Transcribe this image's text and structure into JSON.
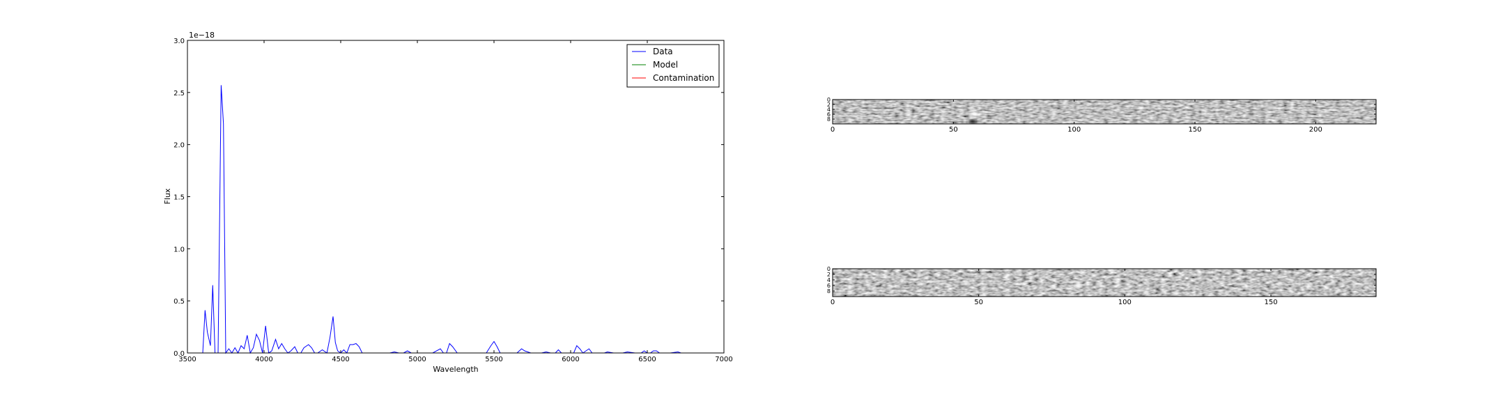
{
  "chart_data": [
    {
      "type": "line",
      "title": "",
      "xlabel": "Wavelength",
      "ylabel": "Flux",
      "offset_label": "1e−18",
      "xlim": [
        3500,
        7000
      ],
      "ylim": [
        0,
        3.0
      ],
      "xticks": [
        3500,
        4000,
        4500,
        5000,
        5500,
        6000,
        6500,
        7000
      ],
      "xtick_labels": [
        "3500",
        "4000",
        "4500",
        "5000",
        "5500",
        "6000",
        "6500",
        "7000"
      ],
      "yticks": [
        0,
        0.5,
        1.0,
        1.5,
        2.0,
        2.5,
        3.0
      ],
      "ytick_labels": [
        "0.0",
        "0.5",
        "1.0",
        "1.5",
        "2.0",
        "2.5",
        "3.0"
      ],
      "grid": false,
      "legend_position": "top-right",
      "series": [
        {
          "name": "Data",
          "color": "#0000ff",
          "x": [
            3580,
            3600,
            3615,
            3630,
            3650,
            3665,
            3680,
            3700,
            3720,
            3735,
            3750,
            3770,
            3790,
            3810,
            3830,
            3850,
            3870,
            3890,
            3910,
            3930,
            3950,
            3970,
            3990,
            4010,
            4030,
            4050,
            4075,
            4095,
            4115,
            4135,
            4155,
            4175,
            4200,
            4220,
            4240,
            4260,
            4290,
            4310,
            4330,
            4350,
            4380,
            4410,
            4430,
            4450,
            4465,
            4480,
            4500,
            4520,
            4540,
            4560,
            4580,
            4600,
            4620,
            4640,
            4660,
            4700,
            4800,
            4820,
            4850,
            4880,
            4910,
            4935,
            4960,
            5000,
            5050,
            5100,
            5150,
            5170,
            5190,
            5210,
            5230,
            5260,
            5300,
            5350,
            5400,
            5450,
            5480,
            5500,
            5520,
            5540,
            5580,
            5620,
            5650,
            5680,
            5700,
            5740,
            5780,
            5810,
            5840,
            5870,
            5900,
            5920,
            5940,
            5960,
            5990,
            6020,
            6040,
            6060,
            6080,
            6100,
            6120,
            6140,
            6160,
            6200,
            6220,
            6240,
            6280,
            6320,
            6340,
            6370,
            6420,
            6460,
            6480,
            6500,
            6520,
            6540,
            6560,
            6580,
            6600,
            6650,
            6700,
            6720,
            6740
          ],
          "y": [
            0.0,
            0.0,
            0.41,
            0.2,
            0.07,
            0.65,
            0.0,
            0.0,
            2.57,
            2.2,
            0.0,
            0.04,
            0.0,
            0.05,
            0.0,
            0.07,
            0.04,
            0.17,
            0.0,
            0.05,
            0.18,
            0.12,
            0.0,
            0.26,
            0.0,
            0.02,
            0.13,
            0.04,
            0.09,
            0.04,
            0.0,
            0.02,
            0.06,
            0.0,
            0.0,
            0.05,
            0.08,
            0.05,
            0.0,
            0.0,
            0.03,
            0.0,
            0.15,
            0.35,
            0.1,
            0.02,
            0.0,
            0.03,
            0.0,
            0.08,
            0.08,
            0.09,
            0.06,
            0.0,
            0.0,
            0.0,
            0.0,
            0.0,
            0.01,
            0.0,
            0.0,
            0.02,
            0.0,
            0.0,
            0.0,
            0.0,
            0.04,
            0.0,
            0.0,
            0.09,
            0.06,
            0.0,
            0.0,
            0.0,
            0.0,
            0.0,
            0.07,
            0.11,
            0.06,
            0.0,
            0.0,
            0.0,
            0.0,
            0.04,
            0.02,
            0.0,
            0.0,
            0.0,
            0.01,
            0.0,
            0.0,
            0.03,
            0.0,
            0.0,
            0.0,
            0.0,
            0.07,
            0.04,
            0.0,
            0.02,
            0.04,
            0.0,
            0.0,
            0.0,
            0.0,
            0.01,
            0.0,
            0.0,
            0.0,
            0.01,
            0.0,
            0.0,
            0.02,
            0.0,
            0.0,
            0.02,
            0.02,
            0.0,
            0.0,
            0.0,
            0.01,
            0.0,
            0.0
          ]
        },
        {
          "name": "Model",
          "color": "#008000",
          "x": [],
          "y": []
        },
        {
          "name": "Contamination",
          "color": "#ff0000",
          "x": [],
          "y": []
        }
      ]
    },
    {
      "type": "heatmap",
      "title": "",
      "colormap": "gray",
      "xlim": [
        0,
        225
      ],
      "ylim": [
        10,
        0
      ],
      "xticks": [
        0,
        50,
        100,
        150,
        200
      ],
      "xtick_labels": [
        "0",
        "50",
        "100",
        "150",
        "200"
      ],
      "yticks": [
        0,
        2,
        4,
        6,
        8
      ],
      "ytick_labels": [
        "0",
        "2",
        "4",
        "6",
        "8"
      ],
      "bright_spots": [
        {
          "x": 59,
          "y": 6
        }
      ],
      "dark_spots": [
        {
          "x": 58,
          "y": 9
        }
      ]
    },
    {
      "type": "heatmap",
      "title": "",
      "colormap": "gray",
      "xlim": [
        0,
        186
      ],
      "ylim": [
        10,
        0
      ],
      "xticks": [
        0,
        50,
        100,
        150
      ],
      "xtick_labels": [
        "0",
        "50",
        "100",
        "150"
      ],
      "yticks": [
        0,
        2,
        4,
        6,
        8
      ],
      "ytick_labels": [
        "0",
        "2",
        "4",
        "6",
        "8"
      ],
      "bright_spots": [
        {
          "x": 84,
          "y": 6
        }
      ],
      "dark_spots": []
    }
  ]
}
